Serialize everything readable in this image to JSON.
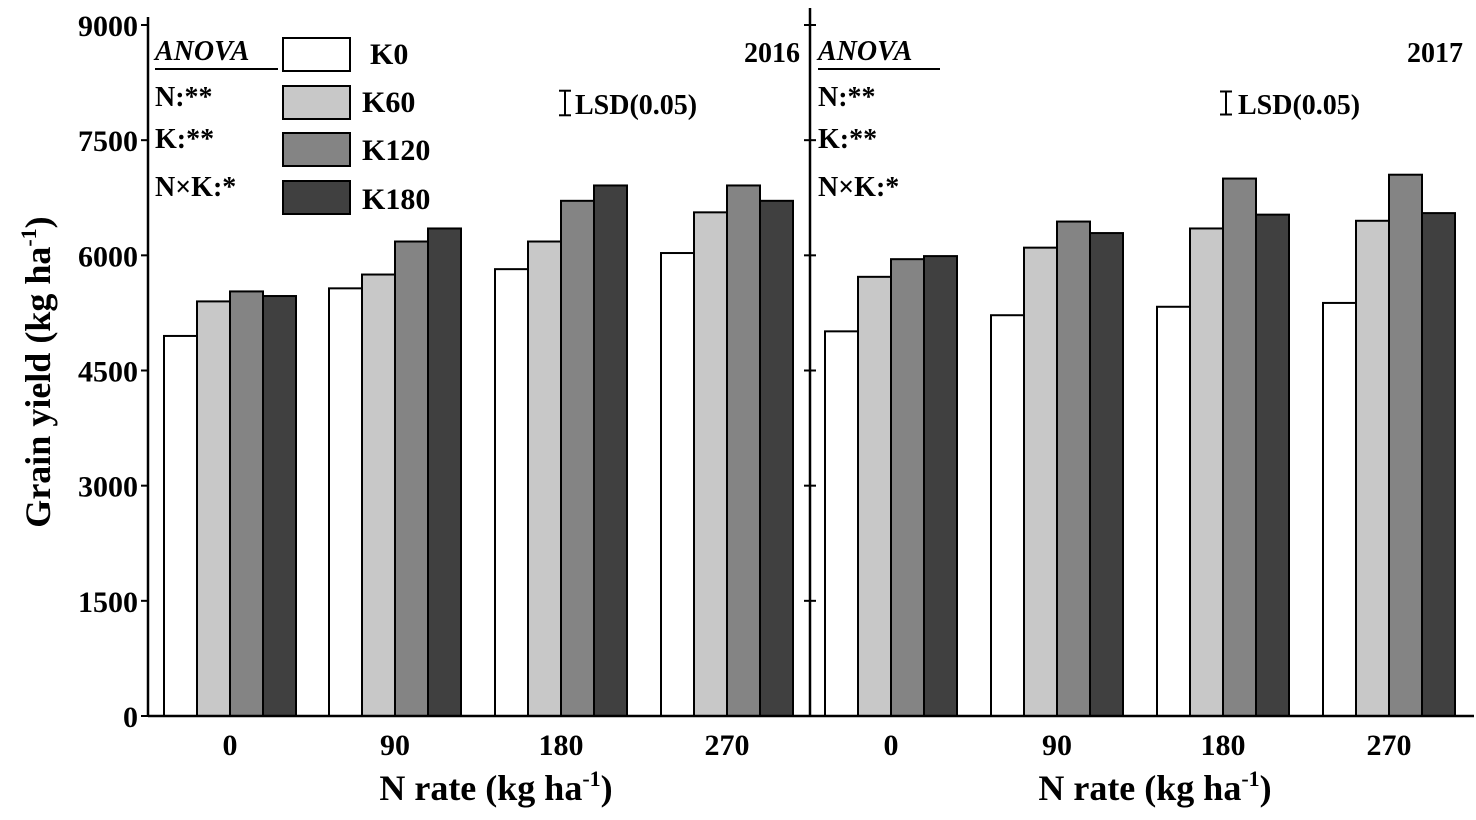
{
  "chart_data": {
    "type": "bar",
    "ylabel": "Grain yield (kg ha",
    "ylabel_sup": "-1",
    "ylabel_close": ")",
    "xlabel": "N rate (kg ha",
    "xlabel_sup": "-1",
    "xlabel_close": ")",
    "ylim": [
      0,
      9000
    ],
    "yticks": [
      "0",
      "1500",
      "3000",
      "4500",
      "6000",
      "7500",
      "9000"
    ],
    "ytick_values": [
      0,
      1500,
      3000,
      4500,
      6000,
      7500,
      9000
    ],
    "categories": [
      "0",
      "90",
      "180",
      "270"
    ],
    "legend": [
      {
        "name": "K0",
        "color": "#ffffff"
      },
      {
        "name": "K60",
        "color": "#c8c8c8"
      },
      {
        "name": "K120",
        "color": "#848484"
      },
      {
        "name": "K180",
        "color": "#404040"
      }
    ],
    "anova": {
      "title": "ANOVA",
      "lines": [
        "N:**",
        "K:**",
        "N×K:*"
      ]
    },
    "lsd_label": "LSD(0.05)",
    "panels": [
      {
        "year": "2016",
        "lsd": 320,
        "series": [
          {
            "name": "K0",
            "values": [
              4950,
              5570,
              5820,
              6030
            ]
          },
          {
            "name": "K60",
            "values": [
              5400,
              5750,
              6180,
              6560
            ]
          },
          {
            "name": "K120",
            "values": [
              5530,
              6180,
              6710,
              6910
            ]
          },
          {
            "name": "K180",
            "values": [
              5470,
              6350,
              6910,
              6710
            ]
          }
        ]
      },
      {
        "year": "2017",
        "lsd": 300,
        "series": [
          {
            "name": "K0",
            "values": [
              5010,
              5220,
              5330,
              5380
            ]
          },
          {
            "name": "K60",
            "values": [
              5720,
              6100,
              6350,
              6450
            ]
          },
          {
            "name": "K120",
            "values": [
              5950,
              6440,
              7000,
              7050
            ]
          },
          {
            "name": "K180",
            "values": [
              5990,
              6290,
              6530,
              6550
            ]
          }
        ]
      }
    ]
  }
}
